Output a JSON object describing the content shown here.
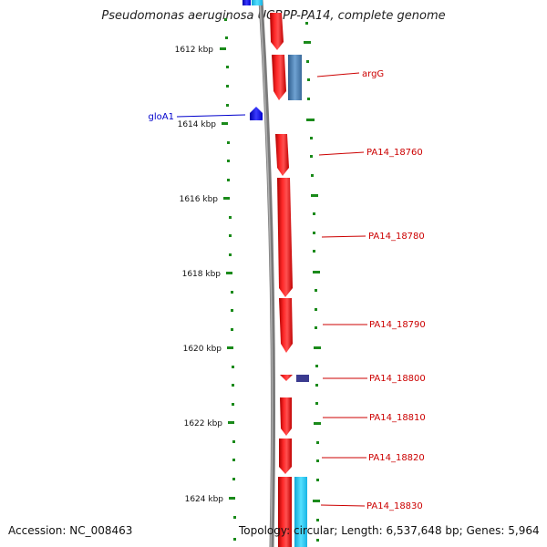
{
  "title": "Pseudomonas aeruginosa UCBPP-PA14, complete genome",
  "footer": {
    "accession": "Accession: NC_008463",
    "summary": "Topology: circular; Length: 6,537,648 bp; Genes: 5,964"
  },
  "colors": {
    "forward_gene": "#ff0000",
    "reverse_gene": "#4682b4",
    "small_blue": "#0000ff",
    "cyan_gene": "#22c8f0",
    "dark_blue": "#3b3b8f",
    "backbone": "#808080",
    "ticks": "#1a8a1a",
    "label_red": "#cc0000",
    "label_blue": "#0000cc"
  },
  "scale_labels": [
    "1612 kbp",
    "1614 kbp",
    "1616 kbp",
    "1618 kbp",
    "1620 kbp",
    "1622 kbp",
    "1624 kbp"
  ],
  "gene_labels": [
    {
      "text": "argG",
      "color": "red"
    },
    {
      "text": "gloA1",
      "color": "blue"
    },
    {
      "text": "PA14_18760",
      "color": "red"
    },
    {
      "text": "PA14_18780",
      "color": "red"
    },
    {
      "text": "PA14_18790",
      "color": "red"
    },
    {
      "text": "PA14_18800",
      "color": "red"
    },
    {
      "text": "PA14_18810",
      "color": "red"
    },
    {
      "text": "PA14_18820",
      "color": "red"
    },
    {
      "text": "PA14_18830",
      "color": "red"
    }
  ]
}
